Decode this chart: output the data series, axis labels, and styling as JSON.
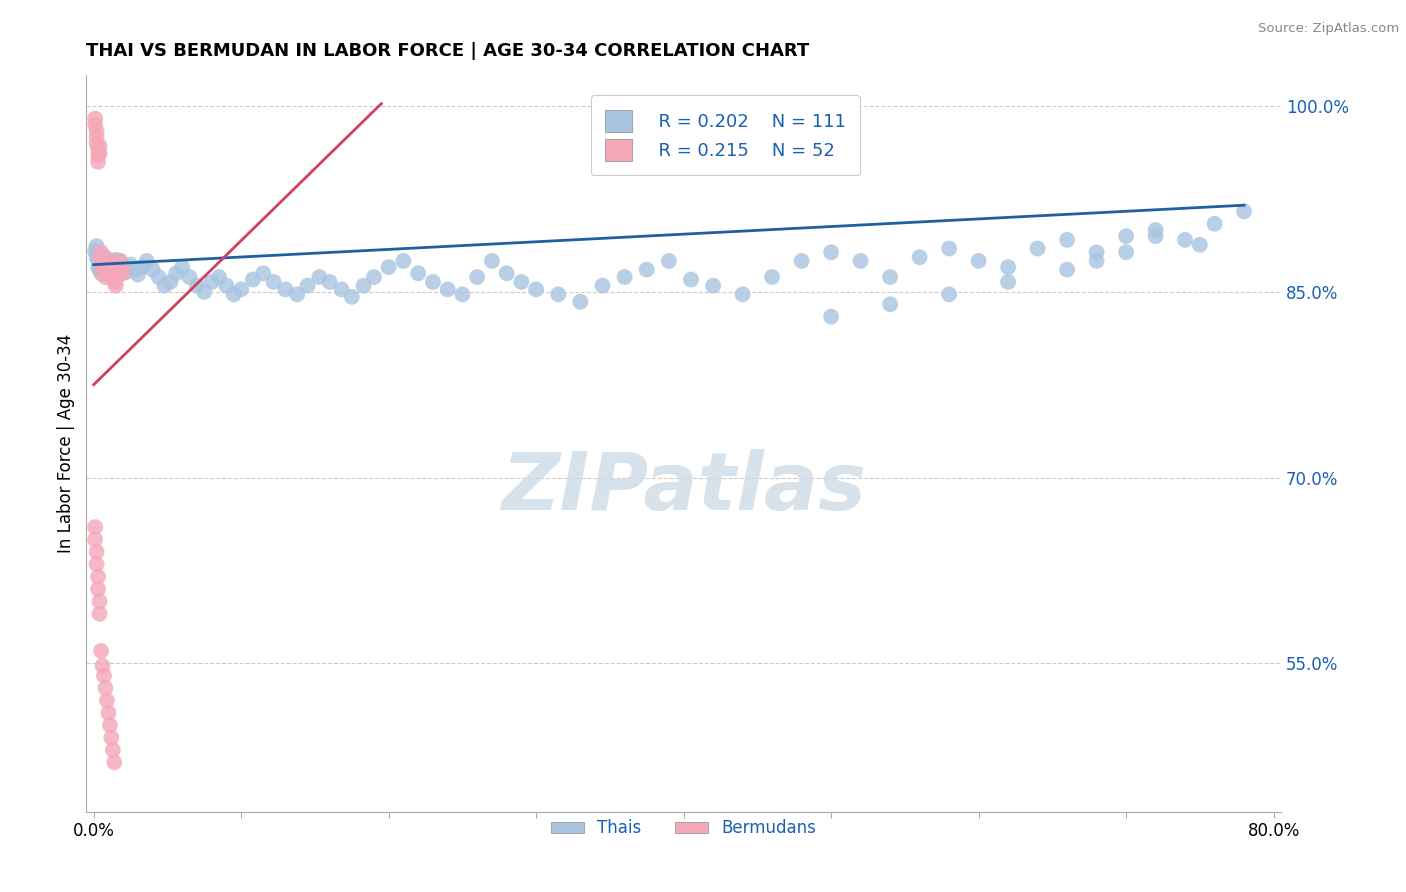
{
  "title": "THAI VS BERMUDAN IN LABOR FORCE | AGE 30-34 CORRELATION CHART",
  "source_text": "Source: ZipAtlas.com",
  "ylabel": "In Labor Force | Age 30-34",
  "xlim": [
    -0.005,
    0.805
  ],
  "ylim": [
    0.43,
    1.025
  ],
  "blue_color": "#a8c4e0",
  "pink_color": "#f4a7b9",
  "blue_line_color": "#2060a0",
  "pink_line_color": "#d04060",
  "legend_text_color": "#1a5fb4",
  "watermark": "ZIPatlas",
  "legend_R_blue": "R = 0.202",
  "legend_N_blue": "N = 111",
  "legend_R_pink": "R = 0.215",
  "legend_N_pink": "N = 52",
  "thai_x": [
    0.001,
    0.002,
    0.002,
    0.003,
    0.003,
    0.003,
    0.004,
    0.004,
    0.005,
    0.005,
    0.005,
    0.006,
    0.006,
    0.007,
    0.007,
    0.007,
    0.008,
    0.008,
    0.009,
    0.009,
    0.01,
    0.01,
    0.011,
    0.011,
    0.012,
    0.012,
    0.013,
    0.014,
    0.015,
    0.015,
    0.016,
    0.018,
    0.02,
    0.022,
    0.025,
    0.028,
    0.03,
    0.033,
    0.036,
    0.04,
    0.044,
    0.048,
    0.052,
    0.056,
    0.06,
    0.065,
    0.07,
    0.075,
    0.08,
    0.085,
    0.09,
    0.095,
    0.1,
    0.108,
    0.115,
    0.122,
    0.13,
    0.138,
    0.145,
    0.153,
    0.16,
    0.168,
    0.175,
    0.183,
    0.19,
    0.2,
    0.21,
    0.22,
    0.23,
    0.24,
    0.25,
    0.26,
    0.27,
    0.28,
    0.29,
    0.3,
    0.315,
    0.33,
    0.345,
    0.36,
    0.375,
    0.39,
    0.405,
    0.42,
    0.44,
    0.46,
    0.48,
    0.5,
    0.52,
    0.54,
    0.56,
    0.58,
    0.6,
    0.62,
    0.64,
    0.66,
    0.68,
    0.7,
    0.72,
    0.74,
    0.76,
    0.78,
    0.72,
    0.75,
    0.7,
    0.68,
    0.66,
    0.62,
    0.58,
    0.54,
    0.5
  ],
  "thai_y": [
    0.883,
    0.887,
    0.878,
    0.875,
    0.87,
    0.882,
    0.868,
    0.876,
    0.865,
    0.872,
    0.879,
    0.875,
    0.868,
    0.874,
    0.871,
    0.865,
    0.872,
    0.878,
    0.868,
    0.875,
    0.872,
    0.866,
    0.875,
    0.869,
    0.873,
    0.866,
    0.869,
    0.872,
    0.876,
    0.87,
    0.868,
    0.875,
    0.87,
    0.866,
    0.872,
    0.868,
    0.864,
    0.87,
    0.875,
    0.868,
    0.862,
    0.855,
    0.858,
    0.865,
    0.87,
    0.862,
    0.855,
    0.85,
    0.858,
    0.862,
    0.855,
    0.848,
    0.852,
    0.86,
    0.865,
    0.858,
    0.852,
    0.848,
    0.855,
    0.862,
    0.858,
    0.852,
    0.846,
    0.855,
    0.862,
    0.87,
    0.875,
    0.865,
    0.858,
    0.852,
    0.848,
    0.862,
    0.875,
    0.865,
    0.858,
    0.852,
    0.848,
    0.842,
    0.855,
    0.862,
    0.868,
    0.875,
    0.86,
    0.855,
    0.848,
    0.862,
    0.875,
    0.882,
    0.875,
    0.862,
    0.878,
    0.885,
    0.875,
    0.87,
    0.885,
    0.892,
    0.882,
    0.895,
    0.9,
    0.892,
    0.905,
    0.915,
    0.895,
    0.888,
    0.882,
    0.875,
    0.868,
    0.858,
    0.848,
    0.84,
    0.83
  ],
  "berm_x": [
    0.001,
    0.001,
    0.002,
    0.002,
    0.002,
    0.003,
    0.003,
    0.003,
    0.004,
    0.004,
    0.005,
    0.005,
    0.005,
    0.006,
    0.006,
    0.007,
    0.007,
    0.008,
    0.008,
    0.009,
    0.009,
    0.01,
    0.01,
    0.011,
    0.011,
    0.012,
    0.013,
    0.014,
    0.015,
    0.016,
    0.017,
    0.018,
    0.019,
    0.02,
    0.001,
    0.001,
    0.002,
    0.002,
    0.003,
    0.003,
    0.004,
    0.004,
    0.005,
    0.006,
    0.007,
    0.008,
    0.009,
    0.01,
    0.011,
    0.012,
    0.013,
    0.014
  ],
  "berm_y": [
    0.99,
    0.985,
    0.98,
    0.975,
    0.97,
    0.965,
    0.96,
    0.955,
    0.962,
    0.968,
    0.878,
    0.882,
    0.875,
    0.872,
    0.865,
    0.87,
    0.875,
    0.862,
    0.868,
    0.875,
    0.87,
    0.865,
    0.872,
    0.868,
    0.875,
    0.87,
    0.862,
    0.858,
    0.855,
    0.862,
    0.868,
    0.875,
    0.87,
    0.865,
    0.66,
    0.65,
    0.64,
    0.63,
    0.62,
    0.61,
    0.6,
    0.59,
    0.56,
    0.548,
    0.54,
    0.53,
    0.52,
    0.51,
    0.5,
    0.49,
    0.48,
    0.47
  ],
  "blue_trend": [
    0.0,
    0.78,
    0.872,
    0.92
  ],
  "pink_trend": [
    0.0,
    0.195,
    0.775,
    1.002
  ]
}
